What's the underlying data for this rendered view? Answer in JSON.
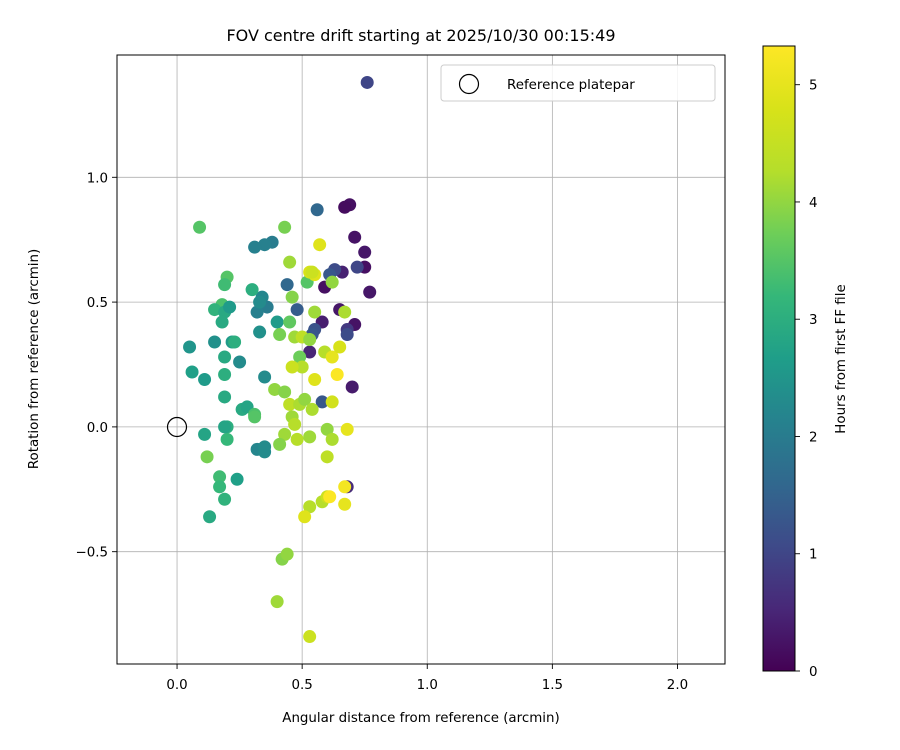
{
  "chart_data": {
    "type": "scatter",
    "title": "FOV centre drift starting at 2025/10/30 00:15:49",
    "xlabel": "Angular distance from reference (arcmin)",
    "ylabel": "Rotation from reference (arcmin)",
    "xlim": [
      -0.24,
      2.19
    ],
    "ylim": [
      -0.95,
      1.49
    ],
    "xticks": [
      0.0,
      0.5,
      1.0,
      1.5,
      2.0
    ],
    "xtick_labels": [
      "0.0",
      "0.5",
      "1.0",
      "1.5",
      "2.0"
    ],
    "yticks": [
      -0.5,
      0.0,
      0.5,
      1.0
    ],
    "ytick_labels": [
      "−0.5",
      "0.0",
      "0.5",
      "1.0"
    ],
    "grid": true,
    "legend": {
      "position": "top-right",
      "entries": [
        "Reference platepar"
      ]
    },
    "reference_point": {
      "x": 0.0,
      "y": 0.0,
      "label": "Reference platepar"
    },
    "colorbar": {
      "label": "Hours from first FF file",
      "colormap": "viridis",
      "range": [
        0,
        5.33
      ],
      "ticks": [
        0,
        1,
        2,
        3,
        4,
        5
      ],
      "tick_labels": [
        "0",
        "1",
        "2",
        "3",
        "4",
        "5"
      ]
    },
    "series": [
      {
        "name": "FOV centre drift",
        "points": [
          [
            0.76,
            1.38,
            1.0
          ],
          [
            0.69,
            0.89,
            0.2
          ],
          [
            0.67,
            0.88,
            0.15
          ],
          [
            0.71,
            0.76,
            0.25
          ],
          [
            0.75,
            0.7,
            0.3
          ],
          [
            0.75,
            0.64,
            0.2
          ],
          [
            0.77,
            0.54,
            0.3
          ],
          [
            0.72,
            0.64,
            1.0
          ],
          [
            0.66,
            0.62,
            0.45
          ],
          [
            0.63,
            0.63,
            1.1
          ],
          [
            0.61,
            0.61,
            1.3
          ],
          [
            0.59,
            0.56,
            0.2
          ],
          [
            0.65,
            0.47,
            0.3
          ],
          [
            0.71,
            0.41,
            0.25
          ],
          [
            0.68,
            0.39,
            0.8
          ],
          [
            0.68,
            0.37,
            1.1
          ],
          [
            0.58,
            0.42,
            0.4
          ],
          [
            0.55,
            0.39,
            1.2
          ],
          [
            0.54,
            0.37,
            1.3
          ],
          [
            0.53,
            0.3,
            0.5
          ],
          [
            0.7,
            0.16,
            0.35
          ],
          [
            0.56,
            0.87,
            1.6
          ],
          [
            0.58,
            0.1,
            1.3
          ],
          [
            0.68,
            -0.24,
            0.6
          ],
          [
            0.44,
            0.57,
            1.6
          ],
          [
            0.48,
            0.47,
            1.4
          ],
          [
            0.4,
            0.42,
            2.6
          ],
          [
            0.38,
            0.74,
            2.0
          ],
          [
            0.35,
            0.73,
            2.1
          ],
          [
            0.31,
            0.72,
            2.1
          ],
          [
            0.34,
            0.52,
            2.2
          ],
          [
            0.36,
            0.48,
            2.0
          ],
          [
            0.32,
            0.46,
            2.1
          ],
          [
            0.33,
            0.5,
            2.3
          ],
          [
            0.33,
            0.38,
            2.4
          ],
          [
            0.3,
            0.55,
            3.0
          ],
          [
            0.35,
            0.2,
            2.3
          ],
          [
            0.25,
            0.26,
            2.3
          ],
          [
            0.22,
            0.34,
            2.6
          ],
          [
            0.15,
            0.34,
            2.4
          ],
          [
            0.05,
            0.32,
            2.5
          ],
          [
            0.06,
            0.22,
            2.7
          ],
          [
            0.11,
            0.19,
            2.6
          ],
          [
            0.19,
            0.28,
            2.9
          ],
          [
            0.19,
            0.21,
            3.0
          ],
          [
            0.19,
            0.12,
            2.9
          ],
          [
            0.09,
            0.8,
            3.5
          ],
          [
            0.2,
            0.6,
            3.5
          ],
          [
            0.19,
            0.57,
            3.3
          ],
          [
            0.18,
            0.49,
            3.4
          ],
          [
            0.15,
            0.47,
            3.1
          ],
          [
            0.19,
            0.46,
            2.9
          ],
          [
            0.18,
            0.42,
            2.9
          ],
          [
            0.21,
            0.48,
            2.6
          ],
          [
            0.26,
            0.07,
            2.9
          ],
          [
            0.28,
            0.08,
            2.8
          ],
          [
            0.31,
            0.05,
            3.4
          ],
          [
            0.31,
            0.04,
            3.5
          ],
          [
            0.32,
            -0.09,
            2.2
          ],
          [
            0.35,
            -0.1,
            2.3
          ],
          [
            0.35,
            -0.08,
            2.3
          ],
          [
            0.2,
            0.0,
            3.0
          ],
          [
            0.2,
            -0.05,
            3.2
          ],
          [
            0.19,
            0.0,
            2.8
          ],
          [
            0.11,
            -0.03,
            2.8
          ],
          [
            0.12,
            -0.12,
            3.8
          ],
          [
            0.17,
            -0.2,
            3.3
          ],
          [
            0.17,
            -0.24,
            3.2
          ],
          [
            0.19,
            -0.29,
            3.1
          ],
          [
            0.24,
            -0.21,
            2.7
          ],
          [
            0.13,
            -0.36,
            2.9
          ],
          [
            0.23,
            0.34,
            3.0
          ],
          [
            0.43,
            0.8,
            3.8
          ],
          [
            0.45,
            0.66,
            4.1
          ],
          [
            0.46,
            0.52,
            3.9
          ],
          [
            0.45,
            0.42,
            3.6
          ],
          [
            0.41,
            0.37,
            3.8
          ],
          [
            0.47,
            0.36,
            4.1
          ],
          [
            0.5,
            0.36,
            4.4
          ],
          [
            0.53,
            0.35,
            4.0
          ],
          [
            0.49,
            0.28,
            3.7
          ],
          [
            0.5,
            0.24,
            4.3
          ],
          [
            0.46,
            0.24,
            4.6
          ],
          [
            0.39,
            0.15,
            4.0
          ],
          [
            0.43,
            0.14,
            3.9
          ],
          [
            0.45,
            0.09,
            4.4
          ],
          [
            0.49,
            0.09,
            4.2
          ],
          [
            0.51,
            0.11,
            4.0
          ],
          [
            0.54,
            0.07,
            4.2
          ],
          [
            0.46,
            0.04,
            4.1
          ],
          [
            0.47,
            0.01,
            4.3
          ],
          [
            0.43,
            -0.03,
            4.1
          ],
          [
            0.41,
            -0.07,
            3.9
          ],
          [
            0.48,
            -0.05,
            4.3
          ],
          [
            0.53,
            -0.04,
            4.1
          ],
          [
            0.6,
            -0.01,
            4.0
          ],
          [
            0.62,
            -0.05,
            4.2
          ],
          [
            0.6,
            -0.12,
            4.4
          ],
          [
            0.58,
            -0.3,
            4.3
          ],
          [
            0.6,
            -0.28,
            4.6
          ],
          [
            0.53,
            -0.32,
            4.3
          ],
          [
            0.42,
            -0.53,
            3.9
          ],
          [
            0.44,
            -0.51,
            4.0
          ],
          [
            0.4,
            -0.7,
            4.1
          ],
          [
            0.53,
            -0.84,
            4.6
          ],
          [
            0.52,
            0.58,
            3.5
          ],
          [
            0.53,
            0.62,
            4.8
          ],
          [
            0.55,
            0.61,
            4.9
          ],
          [
            0.57,
            0.73,
            4.9
          ],
          [
            0.55,
            0.46,
            4.1
          ],
          [
            0.59,
            0.3,
            4.3
          ],
          [
            0.62,
            0.58,
            4.0
          ],
          [
            0.67,
            0.46,
            4.2
          ],
          [
            0.62,
            0.28,
            5.0
          ],
          [
            0.65,
            0.32,
            4.8
          ],
          [
            0.64,
            0.21,
            5.3
          ],
          [
            0.62,
            0.1,
            4.7
          ],
          [
            0.55,
            0.19,
            4.9
          ],
          [
            0.68,
            -0.01,
            5.0
          ],
          [
            0.67,
            -0.24,
            5.2
          ],
          [
            0.61,
            -0.28,
            5.3
          ],
          [
            0.67,
            -0.31,
            5.0
          ],
          [
            0.51,
            -0.36,
            4.9
          ],
          [
            0.54,
            0.62,
            4.6
          ]
        ]
      }
    ]
  }
}
